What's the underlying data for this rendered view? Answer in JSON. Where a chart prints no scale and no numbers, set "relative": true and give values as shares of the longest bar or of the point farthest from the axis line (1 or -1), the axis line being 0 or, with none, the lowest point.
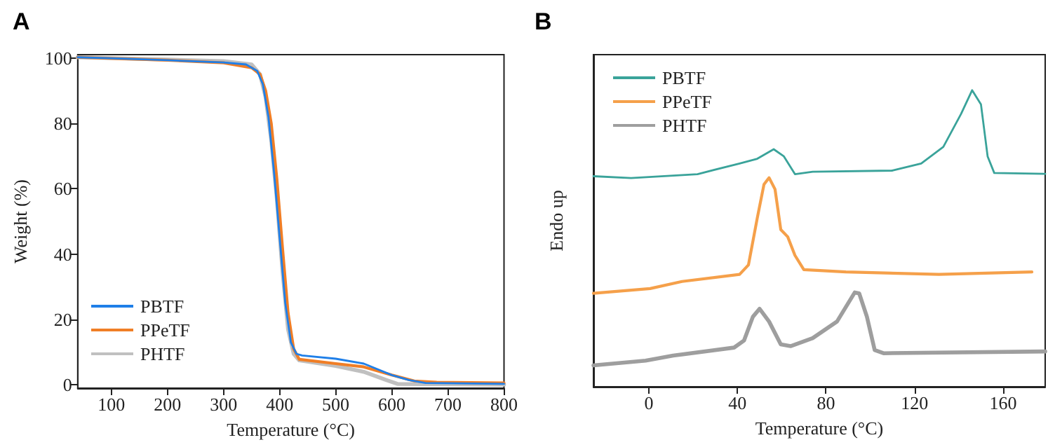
{
  "chart_data": [
    {
      "type": "line",
      "title": "A",
      "xlabel": "Temperature (°C)",
      "ylabel": "Weight (%)",
      "xlim": [
        40,
        800
      ],
      "xticks": [
        100,
        200,
        300,
        400,
        500,
        600,
        700,
        800
      ],
      "ylim": [
        -1,
        101
      ],
      "yticks": [
        0,
        20,
        40,
        60,
        80,
        100
      ],
      "legend": "bottom left",
      "marker": "none",
      "line_style": "solid",
      "grid": false,
      "series": [
        {
          "name": "PBTF",
          "color": "#1f7fe8",
          "x": [
            40,
            100,
            200,
            300,
            340,
            360,
            370,
            380,
            390,
            400,
            410,
            420,
            430,
            440,
            500,
            550,
            600,
            630,
            660,
            800
          ],
          "values": [
            100.2,
            99.9,
            99.3,
            98.6,
            98,
            96,
            92,
            82,
            65,
            45,
            25,
            13,
            9.5,
            9,
            8,
            6.5,
            3,
            1.5,
            0.6,
            0.3
          ]
        },
        {
          "name": "PPeTF",
          "color": "#f07e26",
          "x": [
            40,
            200,
            300,
            350,
            365,
            375,
            385,
            395,
            405,
            415,
            425,
            435,
            500,
            550,
            600,
            640,
            680,
            800
          ],
          "values": [
            100.2,
            99.3,
            98.5,
            97,
            95,
            90,
            80,
            63,
            42,
            22,
            11,
            7.8,
            6.5,
            5.5,
            3,
            1.2,
            0.8,
            0.6
          ]
        },
        {
          "name": "PHTF",
          "color": "#c0c0c0",
          "x": [
            40,
            200,
            300,
            350,
            365,
            375,
            385,
            395,
            405,
            415,
            425,
            435,
            500,
            550,
            590,
            610,
            800
          ],
          "values": [
            100.2,
            99.5,
            99,
            98,
            95,
            88,
            75,
            57,
            35,
            17,
            9.5,
            7.5,
            5.8,
            4,
            1.5,
            0.3,
            0.1
          ]
        }
      ]
    },
    {
      "type": "line",
      "title": "B",
      "xlabel": "Temperature (°C)",
      "ylabel": "Endo up",
      "relative": true,
      "xlim": [
        -25,
        179
      ],
      "xticks": [
        0,
        40,
        80,
        120,
        160
      ],
      "legend": "top left",
      "marker": "none",
      "line_style": "solid",
      "grid": false,
      "series": [
        {
          "name": "PBTF",
          "color": "#3aa39a",
          "x": [
            -25,
            -8,
            22,
            41,
            49,
            56.4,
            61,
            66,
            74,
            110,
            123,
            133,
            141,
            146,
            150,
            153,
            156,
            179
          ],
          "values": [
            0.71,
            0.704,
            0.717,
            0.753,
            0.769,
            0.801,
            0.777,
            0.717,
            0.725,
            0.729,
            0.753,
            0.809,
            0.92,
            1,
            0.952,
            0.777,
            0.721,
            0.718
          ]
        },
        {
          "name": "PPeTF",
          "color": "#f5a04a",
          "x": [
            -25,
            0.6,
            15,
            41,
            45,
            49,
            52,
            54.3,
            57,
            59.6,
            62.7,
            66,
            70,
            89,
            131,
            173
          ],
          "values": [
            0.315,
            0.331,
            0.355,
            0.379,
            0.411,
            0.57,
            0.682,
            0.705,
            0.666,
            0.53,
            0.506,
            0.443,
            0.395,
            0.387,
            0.379,
            0.387
          ]
        },
        {
          "name": "PHTF",
          "color": "#9e9e9e",
          "x": [
            -25,
            -1.5,
            11,
            38.5,
            43,
            47,
            50,
            54.3,
            59.6,
            64,
            74,
            85,
            93,
            95,
            98.5,
            102,
            106,
            179
          ],
          "values": [
            0.072,
            0.088,
            0.105,
            0.132,
            0.156,
            0.236,
            0.263,
            0.22,
            0.143,
            0.137,
            0.164,
            0.22,
            0.318,
            0.315,
            0.236,
            0.124,
            0.113,
            0.119
          ]
        }
      ]
    }
  ]
}
